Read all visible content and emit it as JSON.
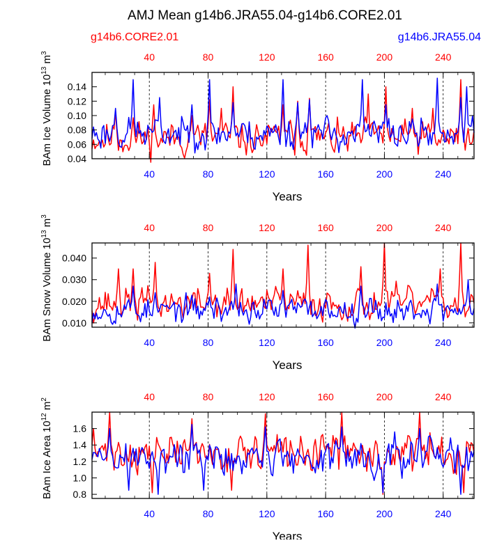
{
  "title": "AMJ Mean g14b6.JRA55.04-g14b6.CORE2.01",
  "legend": {
    "left": "g14b6.CORE2.01",
    "right": "g14b6.JRA55.04",
    "left_color": "#ff0000",
    "right_color": "#0000ff"
  },
  "colors": {
    "core": "#ff0000",
    "jra": "#0000ff",
    "axis": "#000000",
    "grid": "#000000"
  },
  "chart_data": [
    {
      "type": "line",
      "ylabel": "BAm Ice Volume 10",
      "ylabel_exp": "13",
      "ylabel_unit": "m",
      "ylabel_unit_exp": "3",
      "xlabel": "Years",
      "xlim": [
        1,
        261
      ],
      "ylim": [
        0.04,
        0.16
      ],
      "yticks": [
        0.04,
        0.06,
        0.08,
        0.1,
        0.12,
        0.14
      ],
      "ytick_labels": [
        "0.04",
        "0.06",
        "0.08",
        "0.10",
        "0.12",
        "0.14"
      ],
      "xticks": [
        40,
        80,
        120,
        160,
        200,
        240
      ],
      "xtick_labels": [
        "40",
        "80",
        "120",
        "160",
        "200",
        "240"
      ],
      "gridlines_x": [
        40,
        80,
        120,
        160,
        200,
        240
      ],
      "series": [
        {
          "name": "g14b6.CORE2.01",
          "color": "#ff0000",
          "base": 0.068,
          "amp": 0.016,
          "seed": 11,
          "peaks": [
            [
              17,
              0.105
            ],
            [
              29,
              0.097
            ],
            [
              43,
              0.115
            ],
            [
              69,
              0.1
            ],
            [
              81,
              0.122
            ],
            [
              89,
              0.11
            ],
            [
              97,
              0.14
            ],
            [
              131,
              0.115
            ],
            [
              141,
              0.12
            ],
            [
              149,
              0.124
            ],
            [
              189,
              0.13
            ],
            [
              201,
              0.14
            ],
            [
              219,
              0.11
            ],
            [
              233,
              0.11
            ],
            [
              252,
              0.15
            ]
          ]
        },
        {
          "name": "g14b6.JRA55.04",
          "color": "#0000ff",
          "base": 0.075,
          "amp": 0.015,
          "seed": 23,
          "peaks": [
            [
              17,
              0.11
            ],
            [
              29,
              0.15
            ],
            [
              47,
              0.125
            ],
            [
              69,
              0.115
            ],
            [
              81,
              0.15
            ],
            [
              97,
              0.118
            ],
            [
              131,
              0.15
            ],
            [
              141,
              0.118
            ],
            [
              149,
              0.122
            ],
            [
              185,
              0.15
            ],
            [
              201,
              0.115
            ],
            [
              236,
              0.152
            ],
            [
              252,
              0.125
            ],
            [
              256,
              0.14
            ]
          ]
        }
      ]
    },
    {
      "type": "line",
      "ylabel": "BAm Snow Volume 10",
      "ylabel_exp": "13",
      "ylabel_unit": "m",
      "ylabel_unit_exp": "3",
      "xlabel": "Years",
      "xlim": [
        1,
        261
      ],
      "ylim": [
        0.008,
        0.047
      ],
      "yticks": [
        0.01,
        0.02,
        0.03,
        0.04
      ],
      "ytick_labels": [
        "0.010",
        "0.020",
        "0.030",
        "0.040"
      ],
      "xticks": [
        40,
        80,
        120,
        160,
        200,
        240
      ],
      "xtick_labels": [
        "40",
        "80",
        "120",
        "160",
        "200",
        "240"
      ],
      "gridlines_x": [
        40,
        80,
        120,
        160,
        200,
        240
      ],
      "series": [
        {
          "name": "g14b6.CORE2.01",
          "color": "#ff0000",
          "base": 0.019,
          "amp": 0.005,
          "seed": 37,
          "peaks": [
            [
              19,
              0.035
            ],
            [
              29,
              0.035
            ],
            [
              44,
              0.038
            ],
            [
              81,
              0.033
            ],
            [
              97,
              0.044
            ],
            [
              131,
              0.035
            ],
            [
              148,
              0.046
            ],
            [
              184,
              0.036
            ],
            [
              200,
              0.047
            ],
            [
              238,
              0.035
            ],
            [
              252,
              0.047
            ]
          ]
        },
        {
          "name": "g14b6.JRA55.04",
          "color": "#0000ff",
          "base": 0.016,
          "amp": 0.004,
          "seed": 53,
          "peaks": [
            [
              29,
              0.027
            ],
            [
              44,
              0.024
            ],
            [
              81,
              0.022
            ],
            [
              99,
              0.028
            ],
            [
              131,
              0.025
            ],
            [
              184,
              0.027
            ],
            [
              236,
              0.028
            ],
            [
              257,
              0.03
            ]
          ]
        }
      ]
    },
    {
      "type": "line",
      "ylabel": "BAm Ice Area 10",
      "ylabel_exp": "12",
      "ylabel_unit": "m",
      "ylabel_unit_exp": "2",
      "xlabel": "Years",
      "xlim": [
        1,
        261
      ],
      "ylim": [
        0.75,
        1.8
      ],
      "yticks": [
        0.8,
        1.0,
        1.2,
        1.4,
        1.6
      ],
      "ytick_labels": [
        "0.8",
        "1.0",
        "1.2",
        "1.4",
        "1.6"
      ],
      "xticks": [
        40,
        80,
        120,
        160,
        200,
        240
      ],
      "xtick_labels": [
        "40",
        "80",
        "120",
        "160",
        "200",
        "240"
      ],
      "gridlines_x": [
        40,
        80,
        120,
        160,
        200,
        240
      ],
      "series": [
        {
          "name": "g14b6.CORE2.01",
          "color": "#ff0000",
          "base": 1.3,
          "amp": 0.15,
          "seed": 71,
          "peaks": [
            [
              2,
              1.6
            ],
            [
              13,
              1.8
            ],
            [
              69,
              1.72
            ],
            [
              119,
              1.78
            ],
            [
              171,
              1.8
            ],
            [
              224,
              1.8
            ],
            [
              42,
              0.82
            ],
            [
              96,
              0.85
            ],
            [
              199,
              0.8
            ],
            [
              254,
              0.82
            ]
          ]
        },
        {
          "name": "g14b6.JRA55.04",
          "color": "#0000ff",
          "base": 1.25,
          "amp": 0.15,
          "seed": 89,
          "peaks": [
            [
              13,
              1.6
            ],
            [
              69,
              1.65
            ],
            [
              119,
              1.62
            ],
            [
              171,
              1.62
            ],
            [
              224,
              1.6
            ],
            [
              26,
              0.85
            ],
            [
              46,
              0.8
            ],
            [
              77,
              0.85
            ],
            [
              199,
              0.82
            ],
            [
              252,
              0.8
            ]
          ]
        }
      ]
    }
  ]
}
